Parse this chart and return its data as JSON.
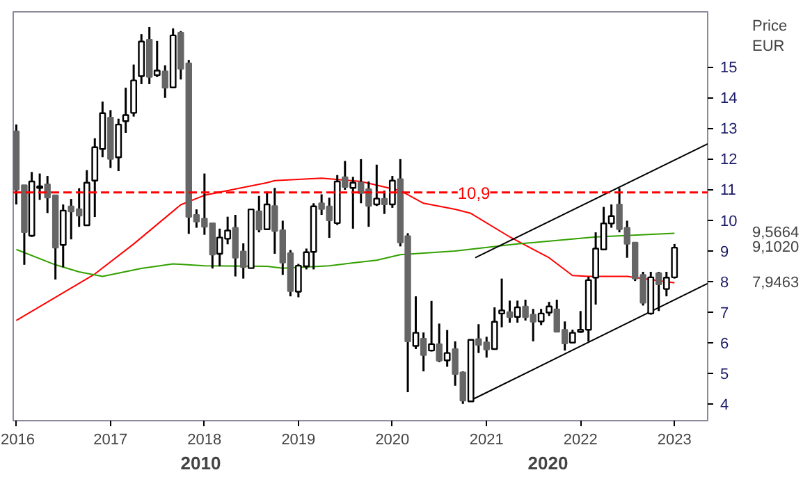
{
  "chart_data": {
    "type": "candlestick",
    "ylabel": "Price\nEUR",
    "x": [
      "2016-01",
      "2016-02",
      "2016-03",
      "2016-04",
      "2016-05",
      "2016-06",
      "2016-07",
      "2016-08",
      "2016-09",
      "2016-10",
      "2016-11",
      "2016-12",
      "2017-01",
      "2017-02",
      "2017-03",
      "2017-04",
      "2017-05",
      "2017-06",
      "2017-07",
      "2017-08",
      "2017-09",
      "2017-10",
      "2017-11",
      "2017-12",
      "2018-01",
      "2018-02",
      "2018-03",
      "2018-04",
      "2018-05",
      "2018-06",
      "2018-07",
      "2018-08",
      "2018-09",
      "2018-10",
      "2018-11",
      "2018-12",
      "2019-01",
      "2019-02",
      "2019-03",
      "2019-04",
      "2019-05",
      "2019-06",
      "2019-07",
      "2019-08",
      "2019-09",
      "2019-10",
      "2019-11",
      "2019-12",
      "2020-01",
      "2020-02",
      "2020-03",
      "2020-04",
      "2020-05",
      "2020-06",
      "2020-07",
      "2020-08",
      "2020-09",
      "2020-10",
      "2020-11",
      "2020-12",
      "2021-01",
      "2021-02",
      "2021-03",
      "2021-04",
      "2021-05",
      "2021-06",
      "2021-07",
      "2021-08",
      "2021-09",
      "2021-10",
      "2021-11",
      "2021-12",
      "2022-01",
      "2022-02",
      "2022-03",
      "2022-04",
      "2022-05",
      "2022-06",
      "2022-07",
      "2022-08",
      "2022-09",
      "2022-10",
      "2022-11",
      "2022-12",
      "2023-01"
    ],
    "ohlc": [
      [
        12.9,
        13.12,
        10.51,
        10.99
      ],
      [
        11.14,
        11.14,
        8.54,
        9.6
      ],
      [
        9.49,
        11.57,
        9.45,
        11.26
      ],
      [
        11.05,
        11.52,
        10.66,
        11.1
      ],
      [
        11.17,
        11.44,
        10.23,
        10.73
      ],
      [
        10.81,
        10.81,
        8.06,
        9.1
      ],
      [
        9.19,
        10.51,
        8.46,
        10.31
      ],
      [
        10.45,
        10.69,
        9.37,
        10.28
      ],
      [
        10.36,
        11.04,
        9.78,
        10.14
      ],
      [
        9.83,
        11.63,
        9.83,
        11.22
      ],
      [
        11.29,
        12.67,
        10.1,
        12.38
      ],
      [
        12.32,
        13.87,
        12.05,
        13.49
      ],
      [
        13.35,
        13.59,
        11.7,
        11.99
      ],
      [
        12.05,
        13.31,
        11.6,
        13.12
      ],
      [
        13.23,
        14.32,
        12.85,
        13.43
      ],
      [
        13.5,
        15.08,
        13.38,
        14.56
      ],
      [
        14.7,
        16.07,
        14.44,
        15.83
      ],
      [
        15.89,
        16.3,
        14.44,
        14.67
      ],
      [
        14.73,
        15.85,
        14.67,
        14.88
      ],
      [
        14.86,
        15.05,
        13.99,
        14.32
      ],
      [
        14.33,
        16.26,
        14.33,
        16.03
      ],
      [
        16.12,
        16.17,
        14.59,
        14.94
      ],
      [
        15.12,
        15.23,
        9.55,
        10.1
      ],
      [
        10.17,
        10.35,
        9.75,
        9.95
      ],
      [
        10.05,
        11.52,
        9.52,
        9.78
      ],
      [
        9.9,
        9.9,
        8.42,
        8.87
      ],
      [
        8.9,
        9.72,
        8.49,
        9.43
      ],
      [
        9.39,
        10.11,
        9.21,
        9.66
      ],
      [
        9.75,
        10.17,
        8.16,
        8.77
      ],
      [
        8.98,
        9.24,
        8.09,
        8.46
      ],
      [
        8.43,
        10.35,
        8.43,
        10.35
      ],
      [
        10.29,
        10.79,
        9.6,
        9.69
      ],
      [
        9.7,
        10.93,
        9.7,
        10.51
      ],
      [
        10.46,
        11.05,
        8.9,
        9.64
      ],
      [
        9.67,
        9.98,
        8.21,
        8.61
      ],
      [
        8.92,
        9.02,
        7.51,
        7.68
      ],
      [
        7.66,
        8.57,
        7.48,
        8.51
      ],
      [
        8.49,
        9.07,
        8.39,
        8.95
      ],
      [
        8.96,
        10.55,
        8.39,
        10.45
      ],
      [
        10.55,
        10.84,
        10.17,
        10.36
      ],
      [
        10.45,
        10.73,
        9.42,
        9.99
      ],
      [
        9.9,
        11.47,
        9.84,
        11.26
      ],
      [
        11.4,
        11.93,
        10.99,
        11.08
      ],
      [
        11.05,
        11.41,
        9.72,
        11.22
      ],
      [
        11.23,
        11.99,
        10.55,
        10.88
      ],
      [
        11.01,
        11.26,
        9.78,
        10.46
      ],
      [
        10.51,
        11.81,
        10.46,
        10.7
      ],
      [
        10.7,
        10.96,
        10.2,
        10.51
      ],
      [
        10.51,
        11.44,
        10.4,
        11.29
      ],
      [
        11.34,
        11.99,
        9.14,
        9.27
      ],
      [
        9.48,
        9.57,
        4.38,
        6.04
      ],
      [
        5.89,
        7.51,
        5.79,
        6.32
      ],
      [
        6.13,
        6.33,
        5.06,
        5.59
      ],
      [
        5.74,
        7.36,
        5.71,
        5.95
      ],
      [
        5.95,
        6.62,
        5.36,
        5.41
      ],
      [
        5.42,
        6.41,
        5.21,
        5.66
      ],
      [
        5.79,
        6.04,
        4.59,
        4.97
      ],
      [
        5.03,
        5.06,
        4.0,
        4.1
      ],
      [
        4.08,
        6.09,
        4.08,
        6.09
      ],
      [
        6.12,
        6.6,
        5.66,
        5.92
      ],
      [
        6.01,
        6.19,
        5.51,
        5.77
      ],
      [
        5.79,
        7.15,
        5.79,
        6.68
      ],
      [
        6.95,
        8.09,
        6.5,
        7.05
      ],
      [
        7.0,
        7.37,
        6.65,
        6.83
      ],
      [
        6.84,
        7.37,
        6.65,
        7.15
      ],
      [
        7.18,
        7.4,
        6.72,
        6.83
      ],
      [
        6.91,
        7.1,
        6.04,
        6.68
      ],
      [
        6.69,
        7.1,
        6.57,
        6.95
      ],
      [
        6.98,
        7.33,
        6.87,
        7.18
      ],
      [
        7.09,
        7.4,
        6.35,
        6.35
      ],
      [
        6.42,
        6.69,
        5.74,
        5.97
      ],
      [
        6.0,
        6.42,
        5.97,
        6.32
      ],
      [
        6.35,
        7.03,
        6.32,
        6.42
      ],
      [
        6.42,
        8.15,
        6.04,
        8.04
      ],
      [
        8.12,
        9.6,
        7.24,
        9.07
      ],
      [
        9.04,
        10.43,
        9.04,
        9.89
      ],
      [
        9.89,
        10.51,
        9.75,
        10.13
      ],
      [
        10.51,
        11.04,
        9.6,
        9.7
      ],
      [
        9.75,
        9.98,
        8.77,
        9.22
      ],
      [
        9.27,
        9.27,
        8.01,
        8.09
      ],
      [
        8.21,
        8.31,
        7.21,
        7.3
      ],
      [
        6.95,
        8.31,
        6.91,
        8.13
      ],
      [
        8.27,
        8.31,
        7.03,
        7.9
      ],
      [
        7.75,
        8.31,
        7.51,
        8.12
      ],
      [
        8.13,
        9.22,
        8.09,
        9.1
      ]
    ],
    "series": [
      {
        "type": "line",
        "color": "#ff0000",
        "x": [
          "2016-01",
          "2016-11",
          "2017-04",
          "2017-10",
          "2018-01",
          "2018-09",
          "2018-10",
          "2019-04",
          "2019-09",
          "2020-02",
          "2020-05",
          "2020-09",
          "2020-11",
          "2021-04",
          "2021-09",
          "2021-12",
          "2022-02",
          "2022-07",
          "2023-01"
        ],
        "values": [
          6.72,
          8.24,
          9.22,
          10.5,
          10.81,
          11.22,
          11.29,
          11.37,
          11.26,
          10.96,
          10.55,
          10.35,
          10.22,
          9.45,
          8.77,
          8.19,
          8.16,
          8.16,
          7.95
        ]
      },
      {
        "type": "line",
        "color": "#33a000",
        "x": [
          "2016-01",
          "2016-06",
          "2016-09",
          "2016-12",
          "2017-05",
          "2017-09",
          "2018-01",
          "2018-09",
          "2018-11",
          "2019-05",
          "2019-11",
          "2020-02",
          "2020-09",
          "2021-05",
          "2022-03",
          "2023-01"
        ],
        "values": [
          9.04,
          8.54,
          8.31,
          8.16,
          8.42,
          8.57,
          8.51,
          8.49,
          8.43,
          8.51,
          8.69,
          8.87,
          8.99,
          9.22,
          9.45,
          9.57
        ]
      },
      {
        "type": "line",
        "color": "#000000",
        "x": [
          "2020-11-18",
          "2023-05-10"
        ],
        "values": [
          8.77,
          12.49
        ]
      },
      {
        "type": "line",
        "color": "#000000",
        "x": [
          "2020-10-23",
          "2023-05-10"
        ],
        "values": [
          4.08,
          7.93
        ]
      }
    ],
    "xlim": [
      "2015-12-20",
      "2023-05-10"
    ],
    "xticks": [
      {
        "value": "2016",
        "label": "2016"
      },
      {
        "value": "2017",
        "label": "2017"
      },
      {
        "value": "2018",
        "label": "2018"
      },
      {
        "value": "2019",
        "label": "2019"
      },
      {
        "value": "2020",
        "label": "2020"
      },
      {
        "value": "2021",
        "label": "2021"
      },
      {
        "value": "2022",
        "label": "2022"
      },
      {
        "value": "2023",
        "label": "2023"
      }
    ],
    "ylim": [
      3.45,
      16.8
    ],
    "yticks": [
      4,
      5,
      6,
      7,
      8,
      9,
      10,
      11,
      12,
      13,
      14,
      15
    ],
    "ref_lines": [
      {
        "axis": "y",
        "value": 10.9,
        "label": "10,9",
        "color": "#ff0000",
        "line_style": "dashed"
      }
    ],
    "annotations": [
      "9,5664",
      "9,1020",
      "7,9463",
      "2010",
      "2020"
    ],
    "grid": false
  }
}
